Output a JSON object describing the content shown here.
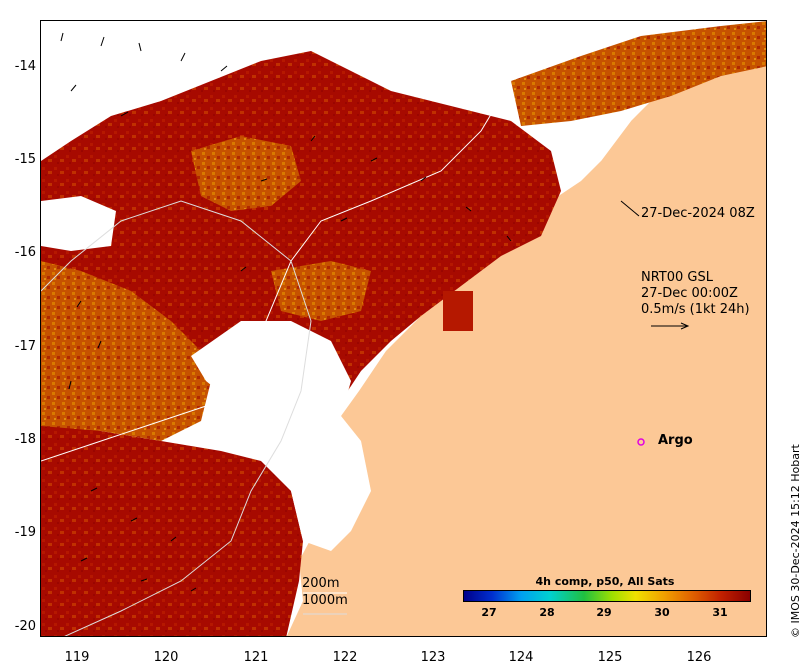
{
  "map": {
    "lon_range": [
      118.6,
      126.8
    ],
    "lat_range": [
      -20.1,
      -13.5
    ],
    "x_ticks": [
      "119",
      "120",
      "121",
      "122",
      "123",
      "124",
      "125",
      "126"
    ],
    "y_ticks": [
      "-14",
      "-15",
      "-16",
      "-17",
      "-18",
      "-19",
      "-20"
    ],
    "colors": {
      "land": "#fcc896",
      "no_data": "#ffffff",
      "sst_warm": "#a70a00",
      "sst_mid": "#d45a00"
    }
  },
  "annotations": {
    "satellite_time": "27-Dec-2024 08Z",
    "current_source": "NRT00 GSL",
    "current_time": "27-Dec 00:00Z",
    "vector_scale": "0.5m/s (1kt 24h)"
  },
  "argo": {
    "label": "Argo",
    "lon": 125.3,
    "lat": -18.0,
    "color": "#e000e0"
  },
  "isobaths": {
    "shallow": "200m",
    "deep": "1000m"
  },
  "colorbar": {
    "title": "4h comp, p50, All Sats",
    "ticks": [
      "27",
      "28",
      "29",
      "30",
      "31"
    ],
    "range": [
      26.6,
      31.6
    ]
  },
  "credit": "© IMOS 30-Dec-2024 15:12 Hobart"
}
